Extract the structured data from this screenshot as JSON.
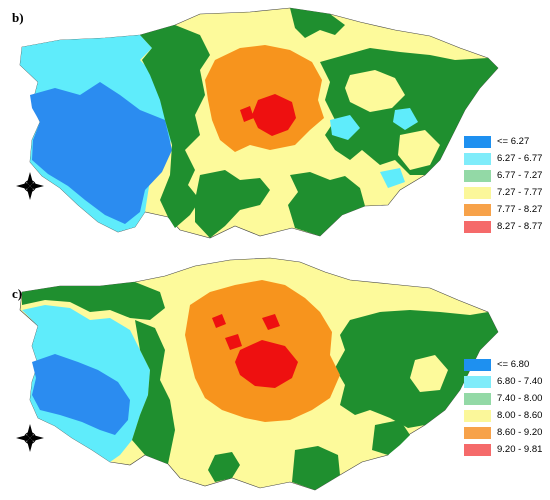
{
  "panels": [
    {
      "label": "b)",
      "legend": [
        {
          "label": "<= 6.27",
          "color": "#1e90f0"
        },
        {
          "label": "6.27 - 6.77",
          "color": "#7fecfa"
        },
        {
          "label": "6.77 - 7.27",
          "color": "#93d9a6"
        },
        {
          "label": "7.27 - 7.77",
          "color": "#fbf79a"
        },
        {
          "label": "7.77 - 8.27",
          "color": "#f7a24a"
        },
        {
          "label": "8.27 - 8.77",
          "color": "#f56a6a"
        }
      ]
    },
    {
      "label": "c)",
      "legend": [
        {
          "label": "<= 6.80",
          "color": "#1e90f0"
        },
        {
          "label": "6.80 - 7.40",
          "color": "#7fecfa"
        },
        {
          "label": "7.40 - 8.00",
          "color": "#93d9a6"
        },
        {
          "label": "8.00 - 8.60",
          "color": "#fbf79a"
        },
        {
          "label": "8.60 - 9.20",
          "color": "#f7a24a"
        },
        {
          "label": "9.20 - 9.81",
          "color": "#f56a6a"
        }
      ]
    }
  ],
  "map_colors": {
    "blue": "#2b8cf0",
    "cyan": "#5fecfb",
    "green": "#1f8f2f",
    "yellow": "#fdfa9b",
    "orange": "#f7941d",
    "red": "#ee1010"
  },
  "icons": [
    "compass-rose-icon"
  ]
}
